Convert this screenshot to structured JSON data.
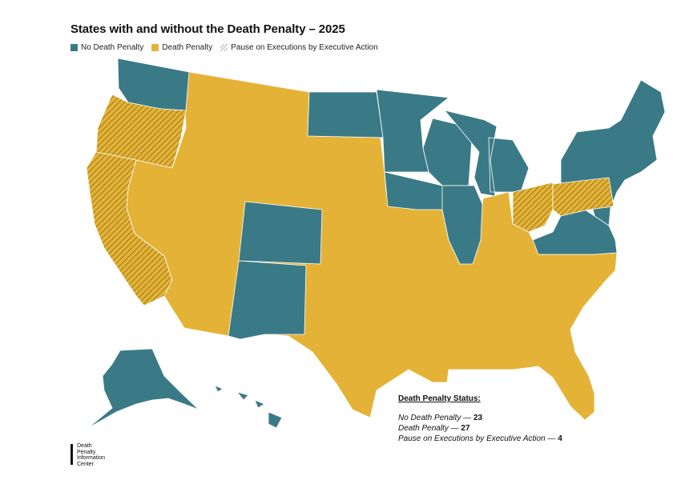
{
  "title": "States with and without the Death Penalty – 2025",
  "legend": [
    {
      "label": "No Death Penalty",
      "color": "#3a7a86"
    },
    {
      "label": "Death Penalty",
      "color": "#e4b236"
    },
    {
      "label": "Pause on Executions by Executive Action",
      "color": "hatch"
    }
  ],
  "status": {
    "heading": "Death Penalty Status:",
    "rows": [
      {
        "label": "No Death Penalty —",
        "count": "23"
      },
      {
        "label": "Death Penalty —",
        "count": "27"
      },
      {
        "label": "Pause on Executions by Executive Action —",
        "count": "4"
      }
    ]
  },
  "logo": {
    "line1": "Death",
    "line2": "Penalty",
    "line3": "Information",
    "line4": "Center"
  },
  "colors": {
    "no_death_penalty": "#3a7a86",
    "death_penalty": "#e4b236",
    "pause_hatch": "#9c7a20",
    "border": "#ffffff"
  }
}
